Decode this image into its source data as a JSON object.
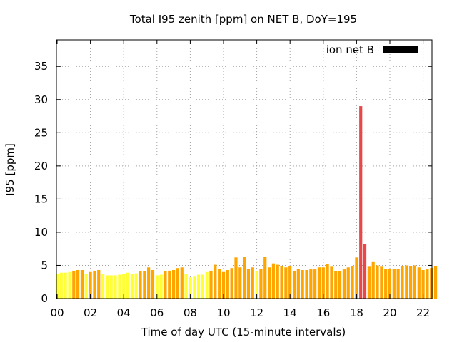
{
  "chart_data": {
    "type": "bar",
    "title": "Total I95 zenith [ppm] on NET B, DoY=195",
    "xlabel": "Time of day UTC (15-minute intervals)",
    "ylabel": "I95 [ppm]",
    "xlim": [
      0,
      22.75
    ],
    "ylim": [
      0,
      39
    ],
    "bar_interval_hours": 0.25,
    "x_ticks": [
      "00",
      "02",
      "04",
      "06",
      "08",
      "10",
      "12",
      "14",
      "16",
      "18",
      "20",
      "22"
    ],
    "y_ticks": [
      "0",
      "5",
      "10",
      "15",
      "20",
      "25",
      "30",
      "35"
    ],
    "grid": true,
    "legend": {
      "position": "top-right",
      "label": "ion net B",
      "color": "#000000"
    },
    "series": [
      {
        "name": "ion net B",
        "x": [
          0.0,
          0.25,
          0.5,
          0.75,
          1.0,
          1.25,
          1.5,
          1.75,
          2.0,
          2.25,
          2.5,
          2.75,
          3.0,
          3.25,
          3.5,
          3.75,
          4.0,
          4.25,
          4.5,
          4.75,
          5.0,
          5.25,
          5.5,
          5.75,
          6.0,
          6.25,
          6.5,
          6.75,
          7.0,
          7.25,
          7.5,
          7.75,
          8.0,
          8.25,
          8.5,
          8.75,
          9.0,
          9.25,
          9.5,
          9.75,
          10.0,
          10.25,
          10.5,
          10.75,
          11.0,
          11.25,
          11.5,
          11.75,
          12.0,
          12.25,
          12.5,
          12.75,
          13.0,
          13.25,
          13.5,
          13.75,
          14.0,
          14.25,
          14.5,
          14.75,
          15.0,
          15.25,
          15.5,
          15.75,
          16.0,
          16.25,
          16.5,
          16.75,
          17.0,
          17.25,
          17.5,
          17.75,
          18.0,
          18.25,
          18.5,
          18.75,
          19.0,
          19.25,
          19.5,
          19.75,
          20.0,
          20.25,
          20.5,
          20.75,
          21.0,
          21.25,
          21.5,
          21.75,
          22.0,
          22.25,
          22.5,
          22.75
        ],
        "values": [
          3.7,
          3.9,
          3.9,
          4.0,
          4.2,
          4.3,
          4.3,
          3.7,
          4.0,
          4.2,
          4.3,
          3.7,
          3.5,
          3.5,
          3.5,
          3.6,
          3.7,
          3.9,
          3.7,
          3.8,
          4.1,
          4.1,
          4.7,
          4.3,
          3.5,
          3.6,
          4.1,
          4.2,
          4.3,
          4.6,
          4.7,
          3.7,
          3.2,
          3.3,
          3.6,
          3.6,
          4.0,
          4.2,
          5.1,
          4.5,
          4.0,
          4.3,
          4.6,
          6.2,
          4.7,
          6.3,
          4.5,
          4.7,
          4.1,
          4.5,
          6.3,
          4.7,
          5.3,
          5.1,
          4.9,
          4.7,
          4.9,
          4.2,
          4.5,
          4.3,
          4.3,
          4.4,
          4.4,
          4.7,
          4.7,
          5.2,
          4.8,
          4.1,
          4.1,
          4.4,
          4.7,
          4.9,
          6.2,
          29.0,
          8.2,
          4.8,
          5.5,
          5.0,
          4.8,
          4.5,
          4.5,
          4.5,
          4.5,
          4.9,
          5.0,
          4.9,
          5.0,
          4.7,
          4.3,
          4.4,
          4.6,
          4.9
        ],
        "colors": [
          "#ffff33",
          "#ffff33",
          "#ffff33",
          "#ffff33",
          "#ffa500",
          "#ffa500",
          "#ffa500",
          "#ffff33",
          "#ffa500",
          "#ffa500",
          "#ffa500",
          "#ffff33",
          "#ffff33",
          "#ffff33",
          "#ffff33",
          "#ffff33",
          "#ffff33",
          "#ffff33",
          "#ffff33",
          "#ffff33",
          "#ffa500",
          "#ffa500",
          "#ffa500",
          "#ffa500",
          "#ffff33",
          "#ffff33",
          "#ffa500",
          "#ffa500",
          "#ffa500",
          "#ffa500",
          "#ffa500",
          "#ffff33",
          "#ffff33",
          "#ffff33",
          "#ffff33",
          "#ffff33",
          "#ffff33",
          "#ffa500",
          "#ffa500",
          "#ffa500",
          "#ffa500",
          "#ffa500",
          "#ffa500",
          "#ffa500",
          "#ffa500",
          "#ffa500",
          "#ffa500",
          "#ffa500",
          "#ffff33",
          "#ffa500",
          "#ffa500",
          "#ffa500",
          "#ffa500",
          "#ffa500",
          "#ffa500",
          "#ffa500",
          "#ffa500",
          "#ffa500",
          "#ffa500",
          "#ffa500",
          "#ffa500",
          "#ffa500",
          "#ffa500",
          "#ffa500",
          "#ffa500",
          "#ffa500",
          "#ffa500",
          "#ffa500",
          "#ffa500",
          "#ffa500",
          "#ffa500",
          "#ffa500",
          "#ffa500",
          "#e84848",
          "#e84848",
          "#ffa500",
          "#ffa500",
          "#ffa500",
          "#ffa500",
          "#ffa500",
          "#ffa500",
          "#ffa500",
          "#ffa500",
          "#ffa500",
          "#ffa500",
          "#ffa500",
          "#ffa500",
          "#ffa500",
          "#ffa500",
          "#ffa500",
          "#ffa500",
          "#ffa500"
        ]
      }
    ]
  }
}
